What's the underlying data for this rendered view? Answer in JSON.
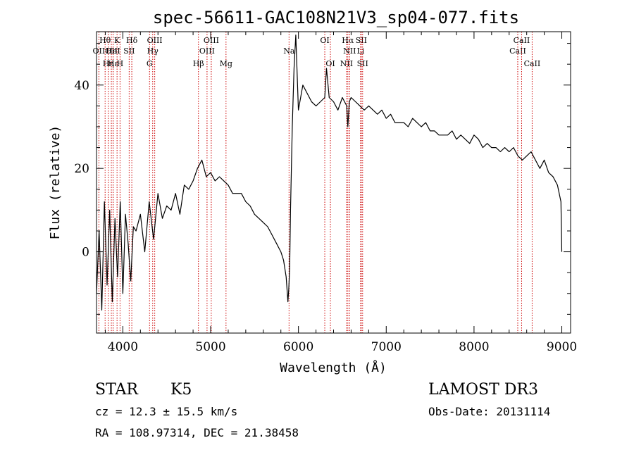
{
  "chart_data": {
    "type": "line",
    "title": "spec-56611-GAC108N21V3_sp04-077.fits",
    "xlabel": "Wavelength (Å)",
    "ylabel": "Flux (relative)",
    "xlim": [
      3700,
      9100
    ],
    "ylim": [
      -19.5,
      52.8
    ],
    "x_ticks": [
      4000,
      5000,
      6000,
      7000,
      8000,
      9000
    ],
    "y_ticks": [
      0,
      20,
      40
    ],
    "series": [
      {
        "x": [
          3700,
          3730,
          3760,
          3790,
          3820,
          3850,
          3880,
          3910,
          3940,
          3970,
          4000,
          4030,
          4060,
          4090,
          4120,
          4150,
          4200,
          4250,
          4300,
          4350,
          4400,
          4450,
          4500,
          4550,
          4600,
          4650,
          4700,
          4750,
          4800,
          4850,
          4900,
          4950,
          5000,
          5050,
          5100,
          5150,
          5200,
          5250,
          5300,
          5350,
          5400,
          5450,
          5500,
          5550,
          5600,
          5650,
          5700,
          5750,
          5800,
          5830,
          5860,
          5880,
          5890,
          5900,
          5910,
          5930,
          5950,
          5970,
          6000,
          6050,
          6100,
          6150,
          6200,
          6250,
          6300,
          6320,
          6350,
          6400,
          6450,
          6500,
          6550,
          6563,
          6580,
          6600,
          6650,
          6700,
          6750,
          6800,
          6850,
          6900,
          6950,
          7000,
          7050,
          7100,
          7150,
          7200,
          7250,
          7300,
          7350,
          7400,
          7450,
          7500,
          7550,
          7600,
          7650,
          7700,
          7750,
          7800,
          7850,
          7900,
          7950,
          8000,
          8050,
          8100,
          8150,
          8200,
          8250,
          8300,
          8350,
          8400,
          8450,
          8500,
          8550,
          8600,
          8650,
          8700,
          8750,
          8800,
          8850,
          8900,
          8950,
          8990,
          9000
        ],
        "y": [
          -10,
          5,
          -14,
          12,
          -8,
          10,
          -12,
          8,
          -6,
          12,
          -10,
          9,
          2,
          -7,
          6,
          5,
          9,
          0,
          12,
          3,
          14,
          8,
          11,
          10,
          14,
          9,
          16,
          15,
          17,
          20,
          22,
          18,
          19,
          17,
          18,
          17,
          16,
          14,
          14,
          14,
          12,
          11,
          9,
          8,
          7,
          6,
          4,
          2,
          0,
          -2,
          -6,
          -12,
          -9,
          -4,
          10,
          30,
          44,
          52,
          34,
          40,
          38,
          36,
          35,
          36,
          37,
          44,
          37,
          36,
          34,
          37,
          35,
          30,
          36,
          37,
          36,
          35,
          34,
          35,
          34,
          33,
          34,
          32,
          33,
          31,
          31,
          31,
          30,
          32,
          31,
          30,
          31,
          29,
          29,
          28,
          28,
          28,
          29,
          27,
          28,
          27,
          26,
          28,
          27,
          25,
          26,
          25,
          25,
          24,
          25,
          24,
          25,
          23,
          22,
          23,
          24,
          22,
          20,
          22,
          19,
          18,
          16,
          12,
          0
        ]
      }
    ],
    "spectral_lines": [
      {
        "label": "OII",
        "x": 3727,
        "row": 2
      },
      {
        "label": "Hθ",
        "x": 3798,
        "row": 1
      },
      {
        "label": "Hη",
        "x": 3835,
        "row": 3
      },
      {
        "label": "OII",
        "x": 3869,
        "row": 2
      },
      {
        "label": "HeI",
        "x": 3889,
        "row": 2
      },
      {
        "label": "Hε",
        "x": 3889,
        "row": 3
      },
      {
        "label": "K",
        "x": 3934,
        "row": 1
      },
      {
        "label": "H",
        "x": 3968,
        "row": 3
      },
      {
        "label": "SII",
        "x": 4072,
        "row": 2
      },
      {
        "label": "Hδ",
        "x": 4102,
        "row": 1
      },
      {
        "label": "G",
        "x": 4304,
        "row": 3
      },
      {
        "label": "Hγ",
        "x": 4340,
        "row": 2
      },
      {
        "label": "OIII",
        "x": 4363,
        "row": 1
      },
      {
        "label": "Hβ",
        "x": 4861,
        "row": 3
      },
      {
        "label": "OIII",
        "x": 4959,
        "row": 2
      },
      {
        "label": "OIII",
        "x": 5007,
        "row": 1
      },
      {
        "label": "Mg",
        "x": 5175,
        "row": 3
      },
      {
        "label": "Na",
        "x": 5893,
        "row": 2
      },
      {
        "label": "OI",
        "x": 6300,
        "row": 1
      },
      {
        "label": "OI",
        "x": 6364,
        "row": 3
      },
      {
        "label": "NII",
        "x": 6548,
        "row": 3
      },
      {
        "label": "Hα",
        "x": 6563,
        "row": 1
      },
      {
        "label": "NII",
        "x": 6583,
        "row": 2
      },
      {
        "label": "Li",
        "x": 6708,
        "row": 2
      },
      {
        "label": "SII",
        "x": 6716,
        "row": 1
      },
      {
        "label": "SII",
        "x": 6731,
        "row": 3
      },
      {
        "label": "CaII",
        "x": 8498,
        "row": 2
      },
      {
        "label": "CaII",
        "x": 8542,
        "row": 1
      },
      {
        "label": "CaII",
        "x": 8662,
        "row": 3
      }
    ]
  },
  "info": {
    "class": "STAR",
    "subclass": "K5",
    "survey": "LAMOST DR3",
    "cz": "cz = 12.3 ± 15.5 km/s",
    "obs_date": "Obs-Date: 20131114",
    "coords": "RA = 108.97314, DEC =  21.38458"
  },
  "colors": {
    "spectrum": "#000000",
    "line_markers": "#cc0000"
  }
}
